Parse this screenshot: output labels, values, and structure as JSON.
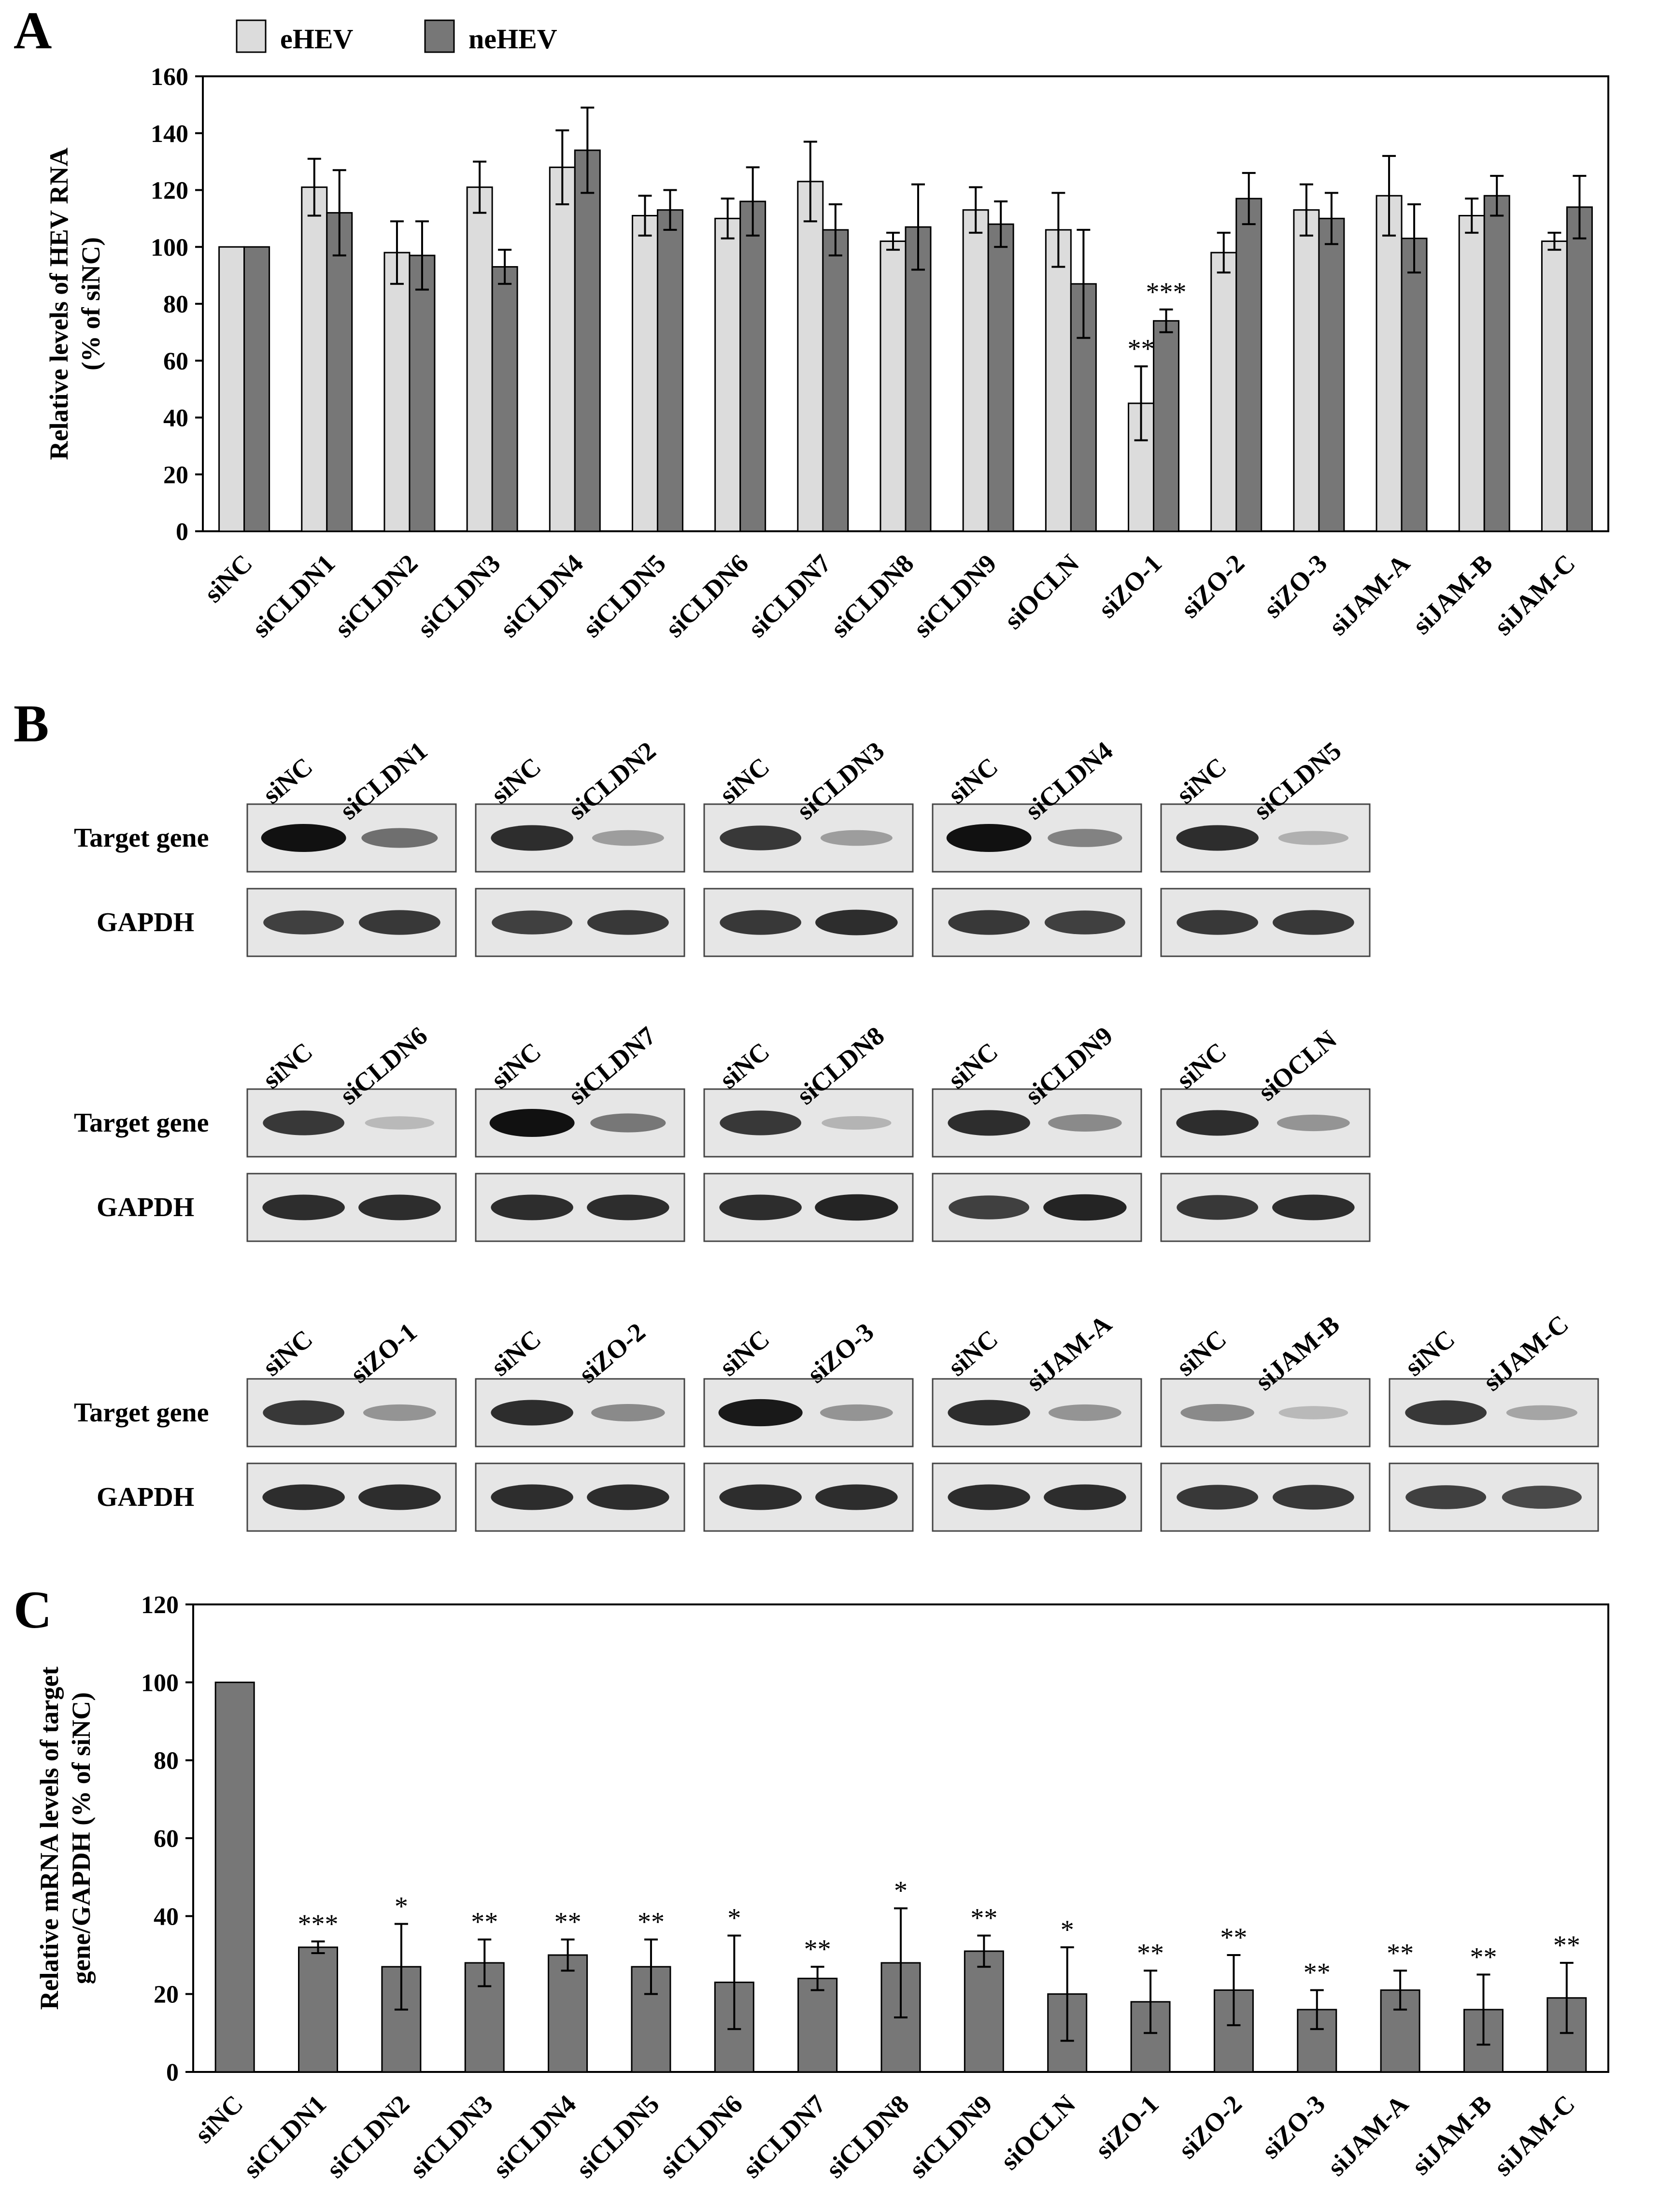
{
  "panels": {
    "A": {
      "letter": "A"
    },
    "B": {
      "letter": "B"
    },
    "C": {
      "letter": "C"
    }
  },
  "colors": {
    "ehev": "#dcdcdc",
    "nehev": "#777777",
    "bar_c": "#777777",
    "axis": "#000000",
    "gel_bg": "#e6e6e6",
    "gel_band": "#111111"
  },
  "chart_data": [
    {
      "id": "A",
      "type": "bar",
      "title": "",
      "xlabel": "",
      "ylabel_lines": [
        "Relative levels of HEV RNA",
        "(% of siNC)"
      ],
      "ylim": [
        0,
        160
      ],
      "yticks": [
        "0",
        "20",
        "40",
        "60",
        "80",
        "100",
        "120",
        "140",
        "160"
      ],
      "legend": {
        "placement": "top-left"
      },
      "categories": [
        "siNC",
        "siCLDN1",
        "siCLDN2",
        "siCLDN3",
        "siCLDN4",
        "siCLDN5",
        "siCLDN6",
        "siCLDN7",
        "siCLDN8",
        "siCLDN9",
        "siOCLN",
        "siZO-1",
        "siZO-2",
        "siZO-3",
        "siJAM-A",
        "siJAM-B",
        "siJAM-C"
      ],
      "series": [
        {
          "name": "eHEV",
          "values": [
            100,
            121,
            98,
            121,
            128,
            111,
            110,
            123,
            102,
            113,
            106,
            45,
            98,
            113,
            118,
            111,
            102
          ],
          "errors": [
            0,
            10,
            11,
            9,
            13,
            7,
            7,
            14,
            3,
            8,
            13,
            13,
            7,
            9,
            14,
            6,
            3
          ],
          "sig": [
            "",
            "",
            "",
            "",
            "",
            "",
            "",
            "",
            "",
            "",
            "",
            "**",
            "",
            "",
            "",
            "",
            ""
          ]
        },
        {
          "name": "neHEV",
          "values": [
            100,
            112,
            97,
            93,
            134,
            113,
            116,
            106,
            107,
            108,
            87,
            74,
            117,
            110,
            103,
            118,
            114
          ],
          "errors": [
            0,
            15,
            12,
            6,
            15,
            7,
            12,
            9,
            15,
            8,
            19,
            4,
            9,
            9,
            12,
            7,
            11
          ],
          "sig": [
            "",
            "",
            "",
            "",
            "",
            "",
            "",
            "",
            "",
            "",
            "",
            "***",
            "",
            "",
            "",
            "",
            ""
          ]
        }
      ]
    },
    {
      "id": "C",
      "type": "bar",
      "title": "",
      "xlabel": "",
      "ylabel_lines": [
        "Relative mRNA levels of target",
        "gene/GAPDH (% of siNC)"
      ],
      "ylim": [
        0,
        120
      ],
      "yticks": [
        "0",
        "20",
        "40",
        "60",
        "80",
        "100",
        "120"
      ],
      "categories": [
        "siNC",
        "siCLDN1",
        "siCLDN2",
        "siCLDN3",
        "siCLDN4",
        "siCLDN5",
        "siCLDN6",
        "siCLDN7",
        "siCLDN8",
        "siCLDN9",
        "siOCLN",
        "siZO-1",
        "siZO-2",
        "siZO-3",
        "siJAM-A",
        "siJAM-B",
        "siJAM-C"
      ],
      "series": [
        {
          "name": "target/GAPDH",
          "values": [
            100,
            32,
            27,
            28,
            30,
            27,
            23,
            24,
            28,
            31,
            20,
            18,
            21,
            16,
            21,
            16,
            19
          ],
          "errors": [
            0,
            1.5,
            11,
            6,
            4,
            7,
            12,
            3,
            14,
            4,
            12,
            8,
            9,
            5,
            5,
            9,
            9
          ],
          "sig": [
            "",
            "***",
            "*",
            "**",
            "**",
            "**",
            "*",
            "**",
            "*",
            "**",
            "*",
            "**",
            "**",
            "**",
            "**",
            "**",
            "**"
          ]
        }
      ]
    }
  ],
  "gels": {
    "row_labels": [
      "Target gene",
      "GAPDH"
    ],
    "rows": [
      {
        "pairs": [
          {
            "lanes": [
              "siNC",
              "siCLDN1"
            ],
            "target": [
              1.0,
              0.5
            ],
            "gapdh": [
              0.75,
              0.8
            ]
          },
          {
            "lanes": [
              "siNC",
              "siCLDN2"
            ],
            "target": [
              0.85,
              0.25
            ],
            "gapdh": [
              0.75,
              0.8
            ]
          },
          {
            "lanes": [
              "siNC",
              "siCLDN3"
            ],
            "target": [
              0.8,
              0.25
            ],
            "gapdh": [
              0.8,
              0.85
            ]
          },
          {
            "lanes": [
              "siNC",
              "siCLDN4"
            ],
            "target": [
              1.0,
              0.4
            ],
            "gapdh": [
              0.8,
              0.75
            ]
          },
          {
            "lanes": [
              "siNC",
              "siCLDN5"
            ],
            "target": [
              0.85,
              0.15
            ],
            "gapdh": [
              0.8,
              0.8
            ]
          }
        ]
      },
      {
        "pairs": [
          {
            "lanes": [
              "siNC",
              "siCLDN6"
            ],
            "target": [
              0.8,
              0.1
            ],
            "gapdh": [
              0.85,
              0.85
            ]
          },
          {
            "lanes": [
              "siNC",
              "siCLDN7"
            ],
            "target": [
              1.0,
              0.45
            ],
            "gapdh": [
              0.85,
              0.85
            ]
          },
          {
            "lanes": [
              "siNC",
              "siCLDN8"
            ],
            "target": [
              0.8,
              0.12
            ],
            "gapdh": [
              0.85,
              0.9
            ]
          },
          {
            "lanes": [
              "siNC",
              "siCLDN9"
            ],
            "target": [
              0.85,
              0.35
            ],
            "gapdh": [
              0.75,
              0.9
            ]
          },
          {
            "lanes": [
              "siNC",
              "siOCLN"
            ],
            "target": [
              0.85,
              0.3
            ],
            "gapdh": [
              0.8,
              0.85
            ]
          }
        ]
      },
      {
        "pairs": [
          {
            "lanes": [
              "siNC",
              "siZO-1"
            ],
            "target": [
              0.8,
              0.3
            ],
            "gapdh": [
              0.85,
              0.85
            ]
          },
          {
            "lanes": [
              "siNC",
              "siZO-2"
            ],
            "target": [
              0.85,
              0.35
            ],
            "gapdh": [
              0.85,
              0.85
            ]
          },
          {
            "lanes": [
              "siNC",
              "siZO-3"
            ],
            "target": [
              0.95,
              0.3
            ],
            "gapdh": [
              0.85,
              0.85
            ]
          },
          {
            "lanes": [
              "siNC",
              "siJAM-A"
            ],
            "target": [
              0.85,
              0.3
            ],
            "gapdh": [
              0.85,
              0.85
            ]
          },
          {
            "lanes": [
              "siNC",
              "siJAM-B"
            ],
            "target": [
              0.35,
              0.1
            ],
            "gapdh": [
              0.8,
              0.8
            ]
          },
          {
            "lanes": [
              "siNC",
              "siJAM-C"
            ],
            "target": [
              0.8,
              0.2
            ],
            "gapdh": [
              0.75,
              0.7
            ]
          }
        ]
      }
    ]
  }
}
